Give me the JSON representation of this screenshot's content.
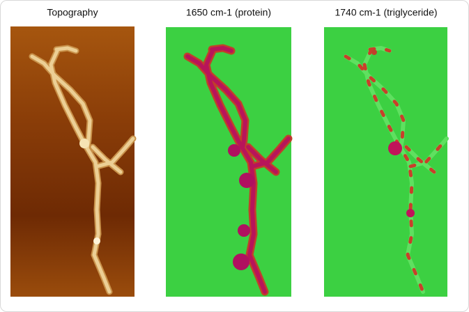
{
  "panels": [
    {
      "title": "Topography"
    },
    {
      "title": "1650 cm-1 (protein)"
    },
    {
      "title": "1740 cm-1 (triglyceride)"
    }
  ]
}
